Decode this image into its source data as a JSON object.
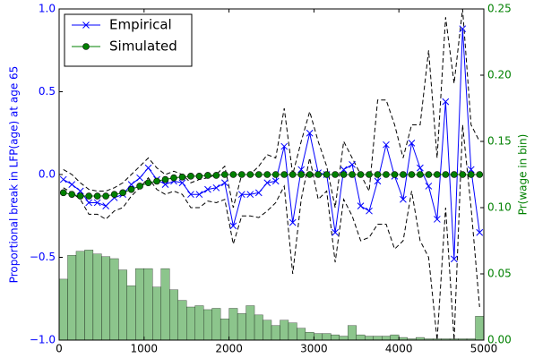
{
  "chart_data": {
    "type": "line",
    "ylabel": "Proportional break in LFP(age) at age 65",
    "y2label": "Pr(wage in bin)",
    "xlim": [
      0,
      5000
    ],
    "xticks": [
      0,
      1000,
      2000,
      3000,
      4000,
      5000
    ],
    "ylim": [
      -1,
      1
    ],
    "yticks": [
      {
        "value": -1,
        "label": "−1.0"
      },
      {
        "value": -0.5,
        "label": "−0.5"
      },
      {
        "value": 0,
        "label": "0.0"
      },
      {
        "value": 0.5,
        "label": "0.5"
      },
      {
        "value": 1,
        "label": "1.0"
      }
    ],
    "y2lim": [
      0,
      0.25
    ],
    "y2ticks": [
      {
        "value": 0,
        "label": "0.00"
      },
      {
        "value": 0.05,
        "label": "0.05"
      },
      {
        "value": 0.1,
        "label": "0.10"
      },
      {
        "value": 0.15,
        "label": "0.15"
      },
      {
        "value": 0.2,
        "label": "0.20"
      },
      {
        "value": 0.25,
        "label": "0.25"
      }
    ],
    "legend": "upper left",
    "x": [
      50,
      150,
      250,
      350,
      450,
      550,
      650,
      750,
      850,
      950,
      1050,
      1150,
      1250,
      1350,
      1450,
      1550,
      1650,
      1750,
      1850,
      1950,
      2050,
      2150,
      2250,
      2350,
      2450,
      2550,
      2650,
      2750,
      2850,
      2950,
      3050,
      3150,
      3250,
      3350,
      3450,
      3550,
      3650,
      3750,
      3850,
      3950,
      4050,
      4150,
      4250,
      4350,
      4450,
      4550,
      4650,
      4750,
      4850,
      4950
    ],
    "series": [
      {
        "name": "Empirical",
        "color": "#0000ff",
        "marker": "x",
        "values": [
          -0.03,
          -0.06,
          -0.1,
          -0.17,
          -0.17,
          -0.19,
          -0.14,
          -0.12,
          -0.06,
          -0.02,
          0.04,
          -0.03,
          -0.06,
          -0.04,
          -0.05,
          -0.12,
          -0.12,
          -0.09,
          -0.08,
          -0.05,
          -0.31,
          -0.12,
          -0.12,
          -0.11,
          -0.05,
          -0.04,
          0.17,
          -0.29,
          0.03,
          0.25,
          0.01,
          0.0,
          -0.35,
          0.03,
          0.06,
          -0.19,
          -0.22,
          -0.04,
          0.18,
          -0.01,
          -0.15,
          0.19,
          0.04,
          -0.07,
          -0.27,
          0.44,
          -0.51,
          0.88,
          0.03,
          -0.35
        ]
      },
      {
        "name": "Simulated",
        "color": "#008000",
        "marker": "o",
        "values": [
          -0.11,
          -0.12,
          -0.13,
          -0.13,
          -0.13,
          -0.13,
          -0.12,
          -0.11,
          -0.09,
          -0.07,
          -0.05,
          -0.04,
          -0.03,
          -0.02,
          -0.015,
          -0.01,
          -0.01,
          -0.005,
          -0.005,
          0,
          0,
          0,
          0,
          0,
          0,
          0,
          0,
          0,
          0,
          0,
          0,
          0,
          0,
          0,
          0,
          0,
          0,
          0,
          0,
          0,
          0,
          0,
          0,
          0,
          0,
          0,
          0,
          0,
          0,
          0
        ]
      },
      {
        "color": "#000000",
        "dashed": true,
        "values": [
          0.03,
          0.0,
          -0.05,
          -0.09,
          -0.1,
          -0.1,
          -0.08,
          -0.05,
          0.0,
          0.05,
          0.1,
          0.04,
          0.0,
          0.02,
          0.0,
          -0.05,
          -0.03,
          -0.02,
          0.0,
          0.05,
          -0.2,
          0.0,
          0.0,
          0.05,
          0.12,
          0.1,
          0.4,
          0.0,
          0.2,
          0.38,
          0.2,
          0.05,
          -0.2,
          0.2,
          0.1,
          0.0,
          -0.1,
          0.45,
          0.45,
          0.3,
          0.1,
          0.3,
          0.3,
          0.75,
          0.1,
          0.95,
          0.55,
          1.0,
          0.3,
          0.2
        ]
      },
      {
        "color": "#000000",
        "dashed": true,
        "values": [
          -0.08,
          -0.11,
          -0.15,
          -0.24,
          -0.24,
          -0.27,
          -0.22,
          -0.2,
          -0.13,
          -0.08,
          -0.02,
          -0.09,
          -0.12,
          -0.1,
          -0.12,
          -0.2,
          -0.2,
          -0.16,
          -0.17,
          -0.15,
          -0.42,
          -0.25,
          -0.25,
          -0.26,
          -0.22,
          -0.17,
          -0.07,
          -0.6,
          -0.15,
          0.1,
          -0.15,
          -0.1,
          -0.53,
          -0.15,
          -0.25,
          -0.4,
          -0.38,
          -0.3,
          -0.3,
          -0.45,
          -0.4,
          -0.1,
          -0.4,
          -0.5,
          -1.0,
          -0.2,
          -1.0,
          0.3,
          -0.2,
          -0.8
        ]
      }
    ],
    "histogram": {
      "axis": "y2",
      "color": "#7fbf7f",
      "bins": [
        0,
        100,
        200,
        300,
        400,
        500,
        600,
        700,
        800,
        900,
        1000,
        1100,
        1200,
        1300,
        1400,
        1500,
        1600,
        1700,
        1800,
        1900,
        2000,
        2100,
        2200,
        2300,
        2400,
        2500,
        2600,
        2700,
        2800,
        2900,
        3000,
        3100,
        3200,
        3300,
        3400,
        3500,
        3600,
        3700,
        3800,
        3900,
        4000,
        4100,
        4200,
        4300,
        4400,
        4500,
        4600,
        4700,
        4800,
        4900,
        5000
      ],
      "counts": [
        0.046,
        0.064,
        0.067,
        0.068,
        0.065,
        0.063,
        0.0615,
        0.053,
        0.041,
        0.054,
        0.054,
        0.04,
        0.054,
        0.038,
        0.03,
        0.025,
        0.026,
        0.023,
        0.024,
        0.016,
        0.024,
        0.02,
        0.026,
        0.019,
        0.015,
        0.011,
        0.015,
        0.013,
        0.009,
        0.006,
        0.005,
        0.005,
        0.004,
        0.003,
        0.011,
        0.004,
        0.003,
        0.003,
        0.003,
        0.004,
        0.002,
        0.001,
        0.002,
        0.001,
        0.001,
        0.001,
        0.001,
        0.001,
        0.001,
        0.018
      ]
    }
  }
}
